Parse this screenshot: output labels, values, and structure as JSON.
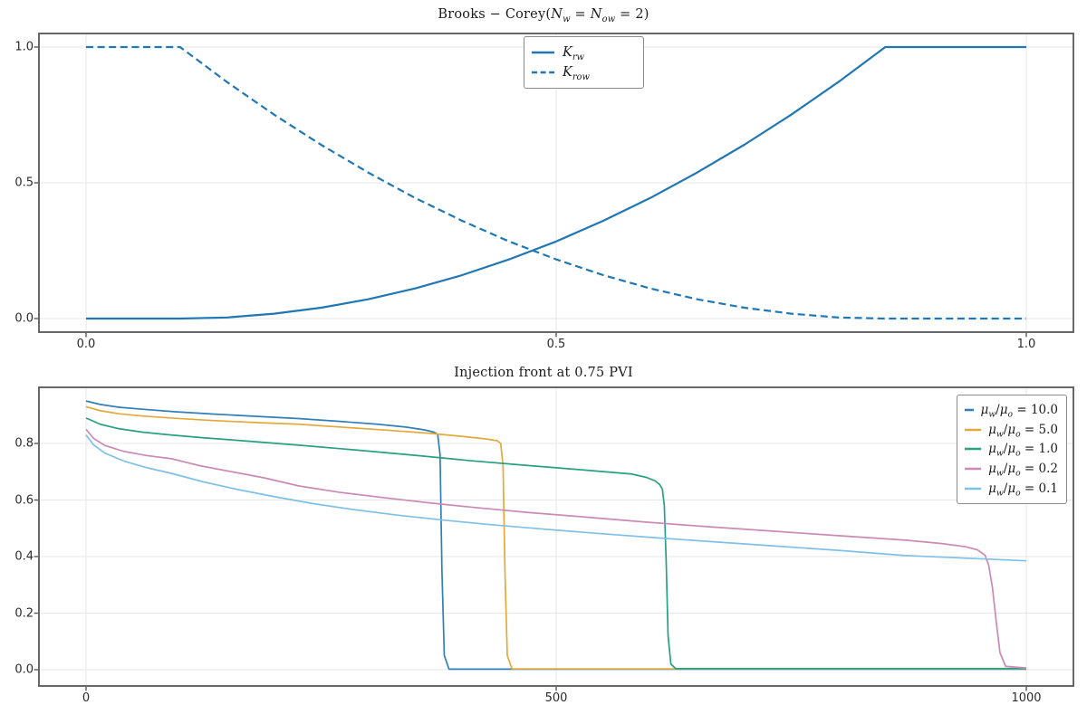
{
  "figure": {
    "background": "#ffffff",
    "spine_color": "#58585a",
    "grid_color": "#e7e7e7",
    "tick_color": "#2b2b2b"
  },
  "chart_data": [
    {
      "id": "relperm",
      "type": "line",
      "title": "Brooks − Corey(*N*_{w} = *N*_{ow} = 2)",
      "xlim": [
        0.0,
        1.0
      ],
      "ylim": [
        0.0,
        1.0
      ],
      "grid": true,
      "legend_position": "upper-center",
      "xticks": {
        "values": [
          0.0,
          0.5,
          1.0
        ],
        "labels": [
          "0.0",
          "0.5",
          "1.0"
        ]
      },
      "yticks": {
        "values": [
          0.0,
          0.5,
          1.0
        ],
        "labels": [
          "0.0",
          "0.5",
          "1.0"
        ]
      },
      "model_params": {
        "Swc": 0.1,
        "Sor": 0.15,
        "Nw": 2,
        "Now": 2
      },
      "series": [
        {
          "name": "Krw",
          "label": "*K*_{rw}",
          "color": "#1f77b4",
          "style": "solid",
          "width": 2.2,
          "x": [
            0,
            0.05,
            0.1,
            0.15,
            0.2,
            0.25,
            0.3,
            0.35,
            0.4,
            0.45,
            0.5,
            0.55,
            0.6,
            0.65,
            0.7,
            0.75,
            0.8,
            0.85,
            0.9,
            0.95,
            1.0
          ],
          "y": [
            0,
            0,
            0,
            0.004,
            0.018,
            0.04,
            0.071,
            0.111,
            0.16,
            0.218,
            0.284,
            0.36,
            0.444,
            0.538,
            0.64,
            0.751,
            0.871,
            1,
            1,
            1,
            1
          ]
        },
        {
          "name": "Krow",
          "label": "*K*_{row}",
          "color": "#1f77b4",
          "style": "dashed",
          "width": 2.2,
          "x": [
            0,
            0.05,
            0.1,
            0.15,
            0.2,
            0.25,
            0.3,
            0.35,
            0.4,
            0.45,
            0.5,
            0.55,
            0.6,
            0.65,
            0.7,
            0.75,
            0.8,
            0.85,
            0.9,
            0.95,
            1.0
          ],
          "y": [
            1,
            1,
            1,
            0.871,
            0.751,
            0.64,
            0.538,
            0.444,
            0.36,
            0.284,
            0.218,
            0.16,
            0.111,
            0.071,
            0.04,
            0.018,
            0.004,
            0,
            0,
            0,
            0
          ]
        }
      ]
    },
    {
      "id": "injection-front",
      "type": "line",
      "title": "Injection front at 0.75 PVI",
      "xlim": [
        0,
        1000
      ],
      "ylim": [
        0.0,
        0.95
      ],
      "grid": true,
      "legend_position": "upper-right",
      "xticks": {
        "values": [
          0,
          500,
          1000
        ],
        "labels": [
          "0",
          "500",
          "1000"
        ]
      },
      "yticks": {
        "values": [
          0.0,
          0.2,
          0.4,
          0.6,
          0.8
        ],
        "labels": [
          "0.0",
          "0.2",
          "0.4",
          "0.6",
          "0.8"
        ]
      },
      "series": [
        {
          "name": "mu-ratio-10.0",
          "label": "*μ*_{w}/*μ*_{o} = 10.0",
          "color": "#2f7fb8",
          "style": "solid",
          "width": 1.7,
          "x": [
            0,
            15,
            35,
            60,
            95,
            135,
            180,
            226,
            270,
            310,
            340,
            360,
            370,
            374,
            376.5,
            378.5,
            381,
            386,
            1000
          ],
          "y": [
            0.95,
            0.938,
            0.928,
            0.921,
            0.912,
            0.904,
            0.896,
            0.888,
            0.878,
            0.868,
            0.858,
            0.848,
            0.84,
            0.832,
            0.76,
            0.35,
            0.05,
            0.002,
            0.002
          ]
        },
        {
          "name": "mu-ratio-5.0",
          "label": "*μ*_{w}/*μ*_{o} = 5.0",
          "color": "#e3a93a",
          "style": "solid",
          "width": 1.7,
          "x": [
            0,
            15,
            35,
            60,
            95,
            135,
            180,
            226,
            275,
            320,
            365,
            403,
            425,
            437,
            441,
            443.5,
            445.5,
            448,
            453,
            1000
          ],
          "y": [
            0.93,
            0.916,
            0.905,
            0.897,
            0.889,
            0.881,
            0.874,
            0.868,
            0.857,
            0.847,
            0.836,
            0.824,
            0.816,
            0.81,
            0.8,
            0.72,
            0.35,
            0.05,
            0.003,
            0.003
          ]
        },
        {
          "name": "mu-ratio-1.0",
          "label": "*μ*_{w}/*μ*_{o} = 1.0",
          "color": "#27a083",
          "style": "solid",
          "width": 1.7,
          "x": [
            0,
            15,
            35,
            60,
            90,
            125,
            165,
            226,
            290,
            350,
            409,
            470,
            530,
            580,
            596,
            605,
            610,
            613,
            615,
            617,
            619,
            622,
            627,
            1000
          ],
          "y": [
            0.89,
            0.868,
            0.852,
            0.84,
            0.83,
            0.82,
            0.81,
            0.794,
            0.776,
            0.758,
            0.739,
            0.722,
            0.706,
            0.692,
            0.68,
            0.668,
            0.655,
            0.638,
            0.58,
            0.38,
            0.12,
            0.02,
            0.004,
            0.004
          ]
        },
        {
          "name": "mu-ratio-0.2",
          "label": "*μ*_{w}/*μ*_{o} = 0.2",
          "color": "#cb8ab6",
          "style": "solid",
          "width": 1.7,
          "x": [
            0,
            8,
            20,
            40,
            65,
            91,
            120,
            155,
            190,
            226,
            270,
            320,
            365,
            409,
            470,
            530,
            595,
            660,
            730,
            800,
            872,
            910,
            935,
            948,
            956,
            960,
            964,
            968,
            972,
            978,
            1000
          ],
          "y": [
            0.85,
            0.818,
            0.793,
            0.772,
            0.757,
            0.746,
            0.722,
            0.7,
            0.678,
            0.65,
            0.627,
            0.607,
            0.59,
            0.575,
            0.556,
            0.54,
            0.522,
            0.506,
            0.49,
            0.474,
            0.458,
            0.446,
            0.435,
            0.424,
            0.405,
            0.37,
            0.29,
            0.17,
            0.06,
            0.012,
            0.006
          ]
        },
        {
          "name": "mu-ratio-0.1",
          "label": "*μ*_{w}/*μ*_{o} = 0.1",
          "color": "#7fc0e6",
          "style": "solid",
          "width": 1.7,
          "x": [
            0,
            8,
            20,
            40,
            65,
            91,
            125,
            160,
            200,
            240,
            285,
            330,
            380,
            430,
            487,
            540,
            600,
            660,
            730,
            800,
            870,
            1000
          ],
          "y": [
            0.83,
            0.795,
            0.766,
            0.738,
            0.714,
            0.694,
            0.664,
            0.638,
            0.612,
            0.588,
            0.566,
            0.547,
            0.529,
            0.513,
            0.497,
            0.483,
            0.468,
            0.454,
            0.438,
            0.422,
            0.404,
            0.385
          ]
        }
      ]
    }
  ]
}
